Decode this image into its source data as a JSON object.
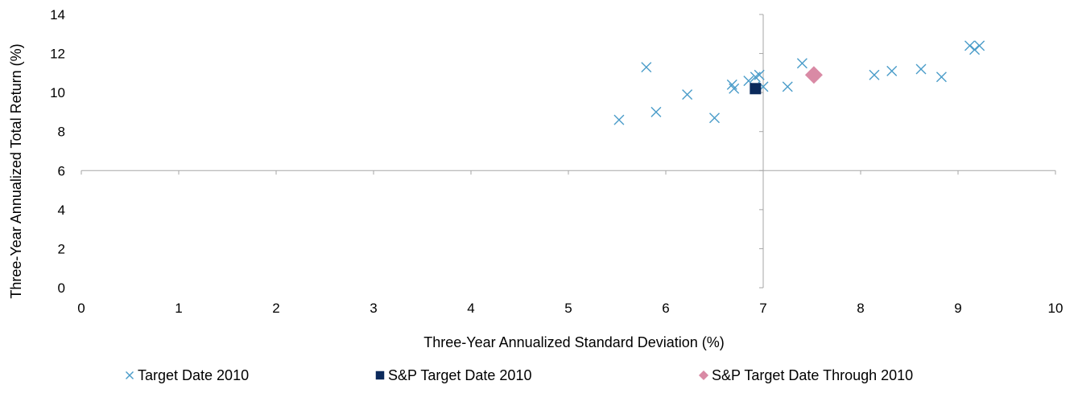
{
  "chart_data": {
    "type": "scatter",
    "xlabel": "Three-Year Annualized Standard Deviation (%)",
    "ylabel": "Three-Year Annualized Total Return (%)",
    "xlim": [
      0,
      10
    ],
    "ylim": [
      0,
      14
    ],
    "x_ticks": [
      0,
      1,
      2,
      3,
      4,
      5,
      6,
      7,
      8,
      9,
      10
    ],
    "y_ticks": [
      0,
      2,
      4,
      6,
      8,
      10,
      12,
      14
    ],
    "axis_crossing": {
      "x": 7,
      "y": 6
    },
    "grid": false,
    "legend_position": "bottom",
    "series": [
      {
        "name": "Target Date 2010",
        "marker": "x",
        "color": "#4a9cc9",
        "points": [
          {
            "x": 5.52,
            "y": 8.6
          },
          {
            "x": 5.8,
            "y": 11.3
          },
          {
            "x": 5.9,
            "y": 9.0
          },
          {
            "x": 6.22,
            "y": 9.9
          },
          {
            "x": 6.5,
            "y": 8.7
          },
          {
            "x": 6.68,
            "y": 10.4
          },
          {
            "x": 6.7,
            "y": 10.2
          },
          {
            "x": 6.85,
            "y": 10.6
          },
          {
            "x": 6.92,
            "y": 10.8
          },
          {
            "x": 6.96,
            "y": 10.9
          },
          {
            "x": 7.0,
            "y": 10.3
          },
          {
            "x": 7.25,
            "y": 10.3
          },
          {
            "x": 7.4,
            "y": 11.5
          },
          {
            "x": 8.14,
            "y": 10.9
          },
          {
            "x": 8.32,
            "y": 11.1
          },
          {
            "x": 8.62,
            "y": 11.2
          },
          {
            "x": 8.83,
            "y": 10.8
          },
          {
            "x": 9.12,
            "y": 12.4
          },
          {
            "x": 9.17,
            "y": 12.2
          },
          {
            "x": 9.22,
            "y": 12.4
          }
        ]
      },
      {
        "name": "S&P Target Date 2010",
        "marker": "square",
        "color": "#0b2a5c",
        "points": [
          {
            "x": 6.92,
            "y": 10.2
          }
        ]
      },
      {
        "name": "S&P Target Date Through 2010",
        "marker": "diamond",
        "color": "#d98aa5",
        "points": [
          {
            "x": 7.52,
            "y": 10.9
          }
        ]
      }
    ]
  }
}
